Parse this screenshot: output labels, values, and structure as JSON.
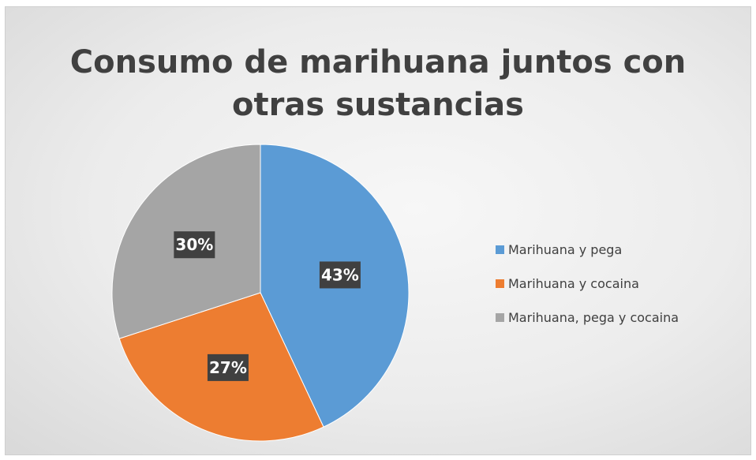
{
  "chart_data": {
    "type": "pie",
    "title_lines": [
      "Consumo de marihuana juntos con",
      "otras sustancias"
    ],
    "categories": [
      "Marihuana y pega",
      "Marihuana y cocaina",
      "Marihuana, pega y cocaina"
    ],
    "values": [
      43,
      27,
      30
    ],
    "data_labels": [
      "43%",
      "27%",
      "30%"
    ],
    "colors": [
      "#5B9BD5",
      "#ED7D31",
      "#A5A5A5"
    ],
    "start_angle": "top, clockwise",
    "legend_position": "right"
  }
}
